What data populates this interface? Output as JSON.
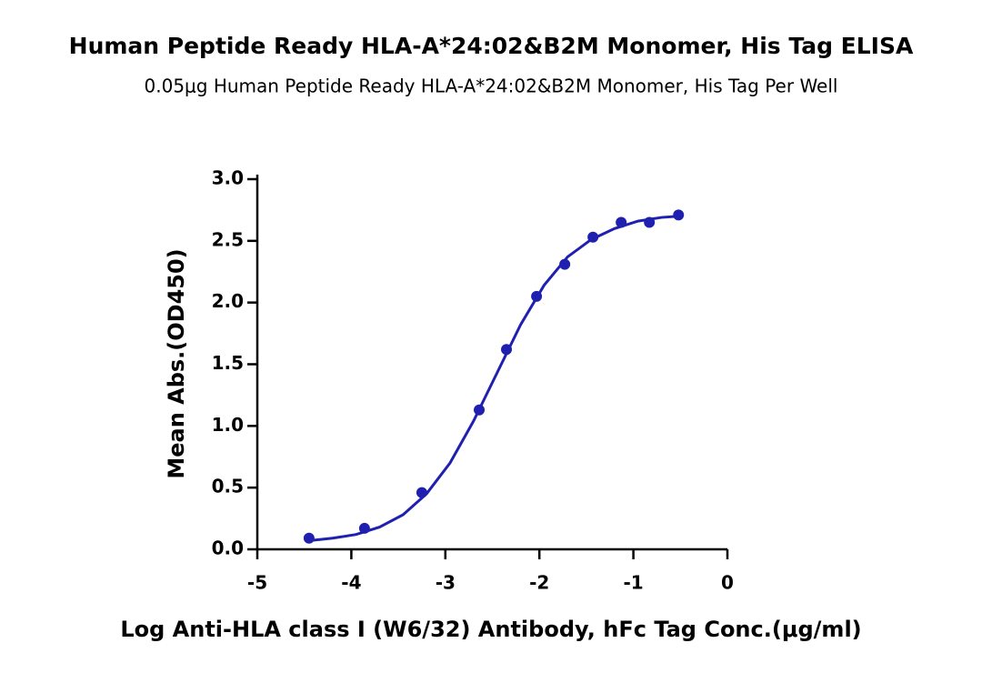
{
  "chart_data": {
    "type": "scatter",
    "title": "Human Peptide Ready HLA-A*24:02&B2M Monomer, His Tag ELISA",
    "subtitle": "0.05μg Human Peptide Ready HLA-A*24:02&B2M Monomer, His Tag Per Well",
    "x_label": "Log Anti-HLA class I (W6/32) Antibody, hFc Tag Conc.(μg/ml)",
    "y_label": "Mean Abs.(OD450)",
    "series": [
      {
        "mode": "markers",
        "color": "#2020b0",
        "x": [
          -4.45,
          -3.86,
          -3.25,
          -2.64,
          -2.35,
          -2.03,
          -1.73,
          -1.43,
          -1.13,
          -0.83,
          -0.52
        ],
        "values": [
          0.09,
          0.17,
          0.46,
          1.13,
          1.62,
          2.05,
          2.31,
          2.53,
          2.65,
          2.65,
          2.71
        ]
      },
      {
        "mode": "line",
        "color": "#2020b0",
        "x": [
          -4.45,
          -4.2,
          -3.95,
          -3.7,
          -3.45,
          -3.2,
          -2.95,
          -2.7,
          -2.45,
          -2.2,
          -1.95,
          -1.7,
          -1.45,
          -1.2,
          -0.95,
          -0.7,
          -0.52
        ],
        "values": [
          0.07,
          0.09,
          0.12,
          0.18,
          0.28,
          0.45,
          0.7,
          1.04,
          1.43,
          1.82,
          2.14,
          2.37,
          2.51,
          2.6,
          2.66,
          2.69,
          2.7
        ]
      }
    ],
    "xlim": [
      -5,
      0
    ],
    "xticks": [
      -5,
      -4,
      -3,
      -2,
      -1,
      0
    ],
    "ylim": [
      0,
      3.0
    ],
    "yticks": [
      {
        "value": 0,
        "label": "0.0"
      },
      0.5,
      {
        "value": 1,
        "label": "1.0"
      },
      1.5,
      {
        "value": 2,
        "label": "2.0"
      },
      2.5,
      {
        "value": 3,
        "label": "3.0"
      }
    ]
  }
}
